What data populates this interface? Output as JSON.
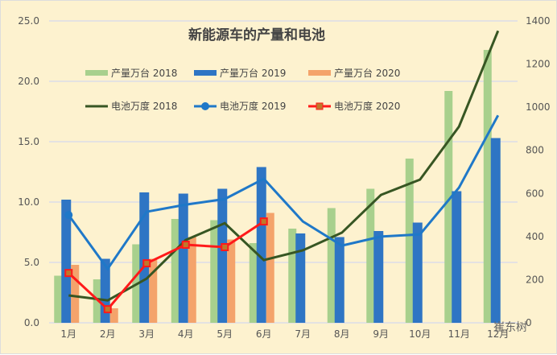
{
  "chart_data": {
    "type": "bar+line",
    "title": "新能源车的产量和电池",
    "categories": [
      "1月",
      "2月",
      "3月",
      "4月",
      "5月",
      "6月",
      "7月",
      "8月",
      "9月",
      "10月",
      "11月",
      "12月"
    ],
    "y_left": {
      "lim": [
        0,
        25
      ],
      "ticks": [
        "0.0",
        "5.0",
        "10.0",
        "15.0",
        "20.0",
        "25.0"
      ]
    },
    "y_right": {
      "lim": [
        0,
        1400
      ],
      "ticks": [
        "0",
        "200",
        "400",
        "600",
        "800",
        "1000",
        "1200",
        "1400"
      ]
    },
    "grid": true,
    "legend": "top",
    "bars": [
      {
        "name": "产量万台 2018",
        "color": "#a8d08d",
        "values": [
          3.9,
          3.6,
          6.5,
          8.6,
          8.5,
          6.6,
          7.8,
          9.5,
          11.1,
          13.6,
          19.2,
          22.6
        ]
      },
      {
        "name": "产量万台 2019",
        "color": "#2e75c4",
        "values": [
          10.2,
          5.3,
          10.8,
          10.7,
          11.1,
          12.9,
          7.4,
          7.1,
          7.6,
          8.3,
          10.9,
          15.3
        ]
      },
      {
        "name": "产量万台 2020",
        "color": "#f4a36b",
        "values": [
          4.8,
          1.2,
          5.3,
          7.1,
          6.9,
          9.1
        ]
      }
    ],
    "lines": [
      {
        "name": "电池万度 2018",
        "color": "#375623",
        "values": [
          127,
          104,
          205,
          384,
          462,
          291,
          336,
          418,
          593,
          664,
          910,
          1354
        ]
      },
      {
        "name": "电池万度 2019",
        "color": "#1f78c8",
        "values": [
          500,
          250,
          515,
          548,
          574,
          668,
          470,
          358,
          400,
          410,
          627,
          962
        ]
      },
      {
        "name": "电池万度 2020",
        "color": "#ff1a1a",
        "values": [
          231,
          63,
          276,
          362,
          351,
          470
        ]
      }
    ]
  },
  "watermark": "崔东树"
}
